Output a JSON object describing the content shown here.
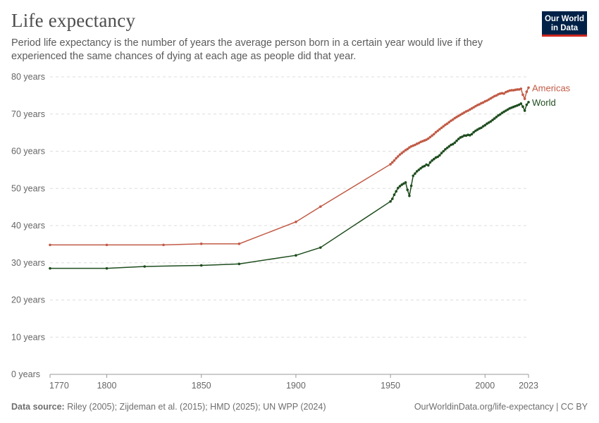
{
  "title": "Life expectancy",
  "subtitle": "Period life expectancy is the number of years the average person born in a certain year would live if they experienced the same chances of dying at each age as people did that year.",
  "logo": {
    "line1": "Our World",
    "line2": "in Data"
  },
  "footer": {
    "source_label": "Data source:",
    "source_text": "Riley (2005); Zijdeman et al. (2015); HMD (2025); UN WPP (2024)",
    "right_text": "OurWorldinData.org/life-expectancy | CC BY"
  },
  "chart_data": {
    "type": "line",
    "title": "Life expectancy",
    "xlabel": "",
    "ylabel": "",
    "xlim": [
      1770,
      2023
    ],
    "ylim": [
      0,
      80
    ],
    "x_ticks": [
      {
        "value": 1770,
        "label": "1770"
      },
      {
        "value": 1800,
        "label": "1800"
      },
      {
        "value": 1850,
        "label": "1850"
      },
      {
        "value": 1900,
        "label": "1900"
      },
      {
        "value": 1950,
        "label": "1950"
      },
      {
        "value": 2000,
        "label": "2000"
      },
      {
        "value": 2023,
        "label": "2023"
      }
    ],
    "y_ticks": [
      {
        "value": 0,
        "label": "0 years"
      },
      {
        "value": 10,
        "label": "10 years"
      },
      {
        "value": 20,
        "label": "20 years"
      },
      {
        "value": 30,
        "label": "30 years"
      },
      {
        "value": 40,
        "label": "40 years"
      },
      {
        "value": 50,
        "label": "50 years"
      },
      {
        "value": 60,
        "label": "60 years"
      },
      {
        "value": 70,
        "label": "70 years"
      },
      {
        "value": 80,
        "label": "80 years"
      }
    ],
    "grid": "horizontal-dashed",
    "legend": "inline-right",
    "series": [
      {
        "name": "Americas",
        "color": "#c15a45",
        "points": [
          [
            1770,
            34.8
          ],
          [
            1800,
            34.8
          ],
          [
            1830,
            34.8
          ],
          [
            1850,
            35.1
          ],
          [
            1870,
            35.1
          ],
          [
            1900,
            41.0
          ],
          [
            1913,
            45.1
          ],
          [
            1950,
            56.5
          ],
          [
            1951,
            57.0
          ],
          [
            1952,
            57.5
          ],
          [
            1953,
            58.1
          ],
          [
            1954,
            58.6
          ],
          [
            1955,
            59.1
          ],
          [
            1956,
            59.5
          ],
          [
            1957,
            59.9
          ],
          [
            1958,
            60.3
          ],
          [
            1959,
            60.6
          ],
          [
            1960,
            61.0
          ],
          [
            1961,
            61.3
          ],
          [
            1962,
            61.5
          ],
          [
            1963,
            61.7
          ],
          [
            1964,
            62.0
          ],
          [
            1965,
            62.2
          ],
          [
            1966,
            62.5
          ],
          [
            1967,
            62.7
          ],
          [
            1968,
            62.9
          ],
          [
            1969,
            63.1
          ],
          [
            1970,
            63.4
          ],
          [
            1971,
            63.8
          ],
          [
            1972,
            64.2
          ],
          [
            1973,
            64.6
          ],
          [
            1974,
            65.1
          ],
          [
            1975,
            65.5
          ],
          [
            1976,
            65.9
          ],
          [
            1977,
            66.3
          ],
          [
            1978,
            66.7
          ],
          [
            1979,
            67.1
          ],
          [
            1980,
            67.4
          ],
          [
            1981,
            67.8
          ],
          [
            1982,
            68.2
          ],
          [
            1983,
            68.5
          ],
          [
            1984,
            68.9
          ],
          [
            1985,
            69.2
          ],
          [
            1986,
            69.5
          ],
          [
            1987,
            69.8
          ],
          [
            1988,
            70.1
          ],
          [
            1989,
            70.4
          ],
          [
            1990,
            70.7
          ],
          [
            1991,
            70.9
          ],
          [
            1992,
            71.2
          ],
          [
            1993,
            71.5
          ],
          [
            1994,
            71.8
          ],
          [
            1995,
            72.1
          ],
          [
            1996,
            72.4
          ],
          [
            1997,
            72.6
          ],
          [
            1998,
            72.9
          ],
          [
            1999,
            73.1
          ],
          [
            2000,
            73.4
          ],
          [
            2001,
            73.6
          ],
          [
            2002,
            73.9
          ],
          [
            2003,
            74.2
          ],
          [
            2004,
            74.5
          ],
          [
            2005,
            74.8
          ],
          [
            2006,
            75.0
          ],
          [
            2007,
            75.3
          ],
          [
            2008,
            75.5
          ],
          [
            2009,
            75.6
          ],
          [
            2010,
            75.5
          ],
          [
            2011,
            75.9
          ],
          [
            2012,
            76.1
          ],
          [
            2013,
            76.3
          ],
          [
            2014,
            76.4
          ],
          [
            2015,
            76.4
          ],
          [
            2016,
            76.5
          ],
          [
            2017,
            76.6
          ],
          [
            2018,
            76.6
          ],
          [
            2019,
            76.8
          ],
          [
            2020,
            75.2
          ],
          [
            2021,
            74.1
          ],
          [
            2022,
            76.0
          ],
          [
            2023,
            77.1
          ]
        ]
      },
      {
        "name": "World",
        "color": "#1e4d1e",
        "points": [
          [
            1770,
            28.5
          ],
          [
            1800,
            28.5
          ],
          [
            1820,
            29.0
          ],
          [
            1850,
            29.3
          ],
          [
            1870,
            29.7
          ],
          [
            1900,
            32.0
          ],
          [
            1913,
            34.1
          ],
          [
            1950,
            46.5
          ],
          [
            1951,
            47.2
          ],
          [
            1952,
            48.3
          ],
          [
            1953,
            49.2
          ],
          [
            1954,
            50.1
          ],
          [
            1955,
            50.6
          ],
          [
            1956,
            51.0
          ],
          [
            1957,
            51.3
          ],
          [
            1958,
            51.6
          ],
          [
            1959,
            49.6
          ],
          [
            1960,
            48.0
          ],
          [
            1961,
            50.7
          ],
          [
            1962,
            53.4
          ],
          [
            1963,
            54.0
          ],
          [
            1964,
            54.6
          ],
          [
            1965,
            55.0
          ],
          [
            1966,
            55.4
          ],
          [
            1967,
            55.8
          ],
          [
            1968,
            56.0
          ],
          [
            1969,
            56.4
          ],
          [
            1970,
            56.2
          ],
          [
            1971,
            57.0
          ],
          [
            1972,
            57.5
          ],
          [
            1973,
            57.9
          ],
          [
            1974,
            58.3
          ],
          [
            1975,
            58.5
          ],
          [
            1976,
            58.9
          ],
          [
            1977,
            59.5
          ],
          [
            1978,
            60.0
          ],
          [
            1979,
            60.5
          ],
          [
            1980,
            60.9
          ],
          [
            1981,
            61.3
          ],
          [
            1982,
            61.7
          ],
          [
            1983,
            61.9
          ],
          [
            1984,
            62.3
          ],
          [
            1985,
            62.8
          ],
          [
            1986,
            63.3
          ],
          [
            1987,
            63.7
          ],
          [
            1988,
            63.9
          ],
          [
            1989,
            64.2
          ],
          [
            1990,
            64.2
          ],
          [
            1991,
            64.4
          ],
          [
            1992,
            64.3
          ],
          [
            1993,
            64.6
          ],
          [
            1994,
            65.1
          ],
          [
            1995,
            65.5
          ],
          [
            1996,
            65.8
          ],
          [
            1997,
            66.1
          ],
          [
            1998,
            66.3
          ],
          [
            1999,
            66.7
          ],
          [
            2000,
            67.0
          ],
          [
            2001,
            67.4
          ],
          [
            2002,
            67.7
          ],
          [
            2003,
            68.0
          ],
          [
            2004,
            68.4
          ],
          [
            2005,
            68.8
          ],
          [
            2006,
            69.2
          ],
          [
            2007,
            69.6
          ],
          [
            2008,
            69.9
          ],
          [
            2009,
            70.3
          ],
          [
            2010,
            70.6
          ],
          [
            2011,
            70.9
          ],
          [
            2012,
            71.2
          ],
          [
            2013,
            71.5
          ],
          [
            2014,
            71.7
          ],
          [
            2015,
            71.9
          ],
          [
            2016,
            72.1
          ],
          [
            2017,
            72.3
          ],
          [
            2018,
            72.5
          ],
          [
            2019,
            72.8
          ],
          [
            2020,
            72.0
          ],
          [
            2021,
            70.9
          ],
          [
            2022,
            72.5
          ],
          [
            2023,
            73.2
          ]
        ]
      }
    ]
  }
}
